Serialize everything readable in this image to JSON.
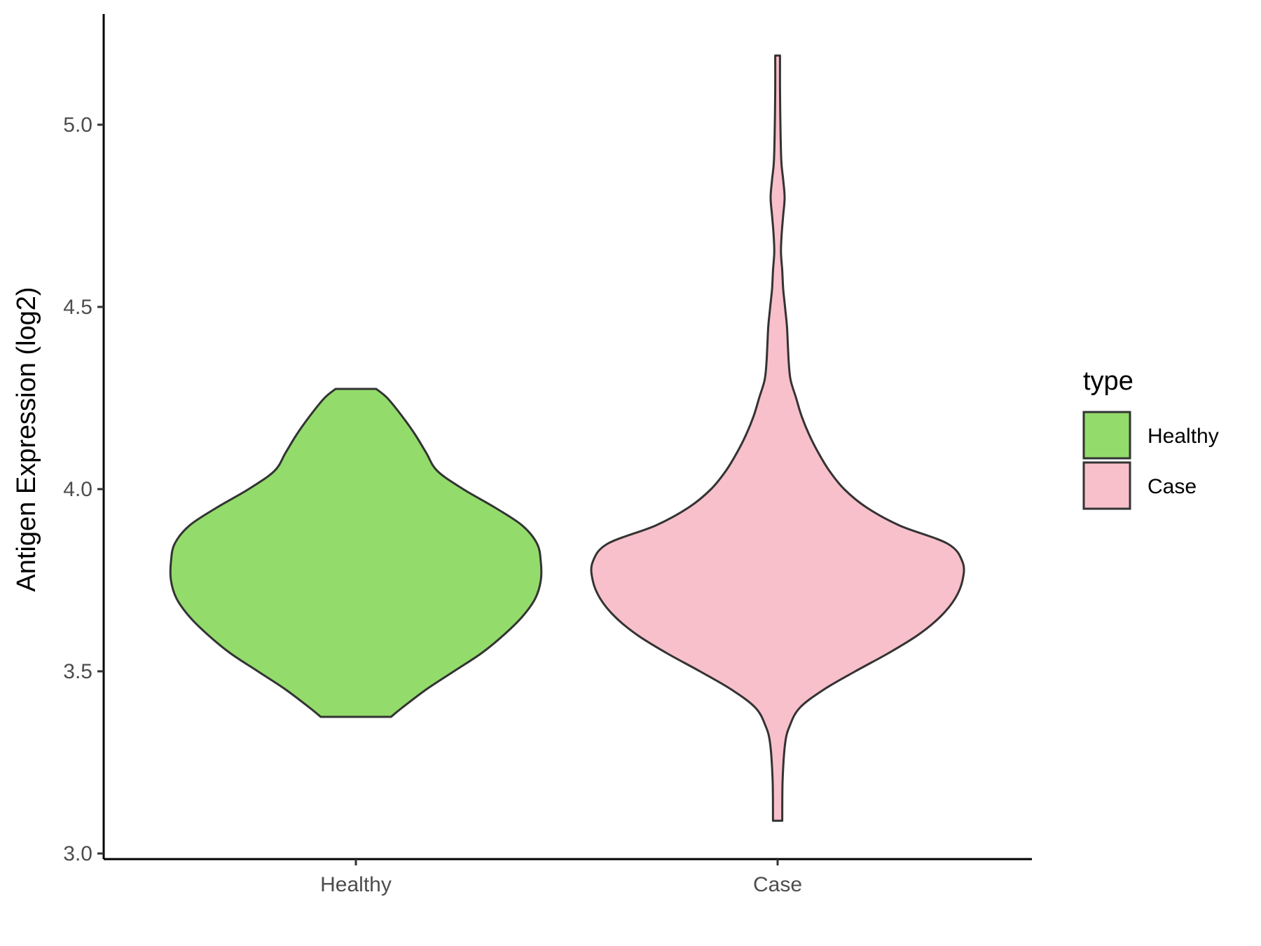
{
  "chart_data": {
    "type": "violin",
    "title": "",
    "xlabel": "",
    "ylabel": "Antigen Expression (log2)",
    "ylim": [
      2.98,
      5.3
    ],
    "y_ticks": [
      {
        "value": 3.0,
        "label": "3.0"
      },
      {
        "value": 3.5,
        "label": "3.5"
      },
      {
        "value": 4.0,
        "label": "4.0"
      },
      {
        "value": 4.5,
        "label": "4.5"
      },
      {
        "value": 5.0,
        "label": "5.0"
      }
    ],
    "categories": [
      "Healthy",
      "Case"
    ],
    "grid": false,
    "legend": {
      "title": "type",
      "position": "right",
      "entries": [
        {
          "label": "Healthy",
          "color": "#93dc6b"
        },
        {
          "label": "Case",
          "color": "#f8c0cb"
        }
      ]
    },
    "series": [
      {
        "name": "Healthy",
        "color": "#93dc6b",
        "min": 3.375,
        "max": 4.275,
        "density_profile": [
          [
            3.375,
            0.19
          ],
          [
            3.4,
            0.25
          ],
          [
            3.45,
            0.38
          ],
          [
            3.5,
            0.53
          ],
          [
            3.55,
            0.68
          ],
          [
            3.6,
            0.8
          ],
          [
            3.65,
            0.9
          ],
          [
            3.7,
            0.97
          ],
          [
            3.75,
            1.0
          ],
          [
            3.8,
            1.0
          ],
          [
            3.85,
            0.98
          ],
          [
            3.9,
            0.9
          ],
          [
            3.95,
            0.75
          ],
          [
            4.0,
            0.58
          ],
          [
            4.05,
            0.44
          ],
          [
            4.1,
            0.38
          ],
          [
            4.15,
            0.32
          ],
          [
            4.2,
            0.25
          ],
          [
            4.25,
            0.17
          ],
          [
            4.275,
            0.11
          ]
        ]
      },
      {
        "name": "Case",
        "color": "#f8c0cb",
        "min": 3.09,
        "max": 5.19,
        "density_profile": [
          [
            3.09,
            0.025
          ],
          [
            3.2,
            0.027
          ],
          [
            3.3,
            0.04
          ],
          [
            3.35,
            0.065
          ],
          [
            3.4,
            0.12
          ],
          [
            3.45,
            0.25
          ],
          [
            3.5,
            0.42
          ],
          [
            3.55,
            0.6
          ],
          [
            3.6,
            0.76
          ],
          [
            3.65,
            0.88
          ],
          [
            3.7,
            0.96
          ],
          [
            3.75,
            1.0
          ],
          [
            3.8,
            1.0
          ],
          [
            3.85,
            0.92
          ],
          [
            3.9,
            0.66
          ],
          [
            3.95,
            0.48
          ],
          [
            4.0,
            0.36
          ],
          [
            4.05,
            0.28
          ],
          [
            4.1,
            0.22
          ],
          [
            4.15,
            0.17
          ],
          [
            4.2,
            0.13
          ],
          [
            4.25,
            0.1
          ],
          [
            4.3,
            0.07
          ],
          [
            4.35,
            0.06
          ],
          [
            4.4,
            0.055
          ],
          [
            4.45,
            0.05
          ],
          [
            4.5,
            0.04
          ],
          [
            4.55,
            0.03
          ],
          [
            4.6,
            0.025
          ],
          [
            4.65,
            0.018
          ],
          [
            4.7,
            0.022
          ],
          [
            4.75,
            0.03
          ],
          [
            4.8,
            0.038
          ],
          [
            4.85,
            0.03
          ],
          [
            4.9,
            0.02
          ],
          [
            5.0,
            0.015
          ],
          [
            5.1,
            0.013
          ],
          [
            5.19,
            0.013
          ]
        ]
      }
    ]
  }
}
